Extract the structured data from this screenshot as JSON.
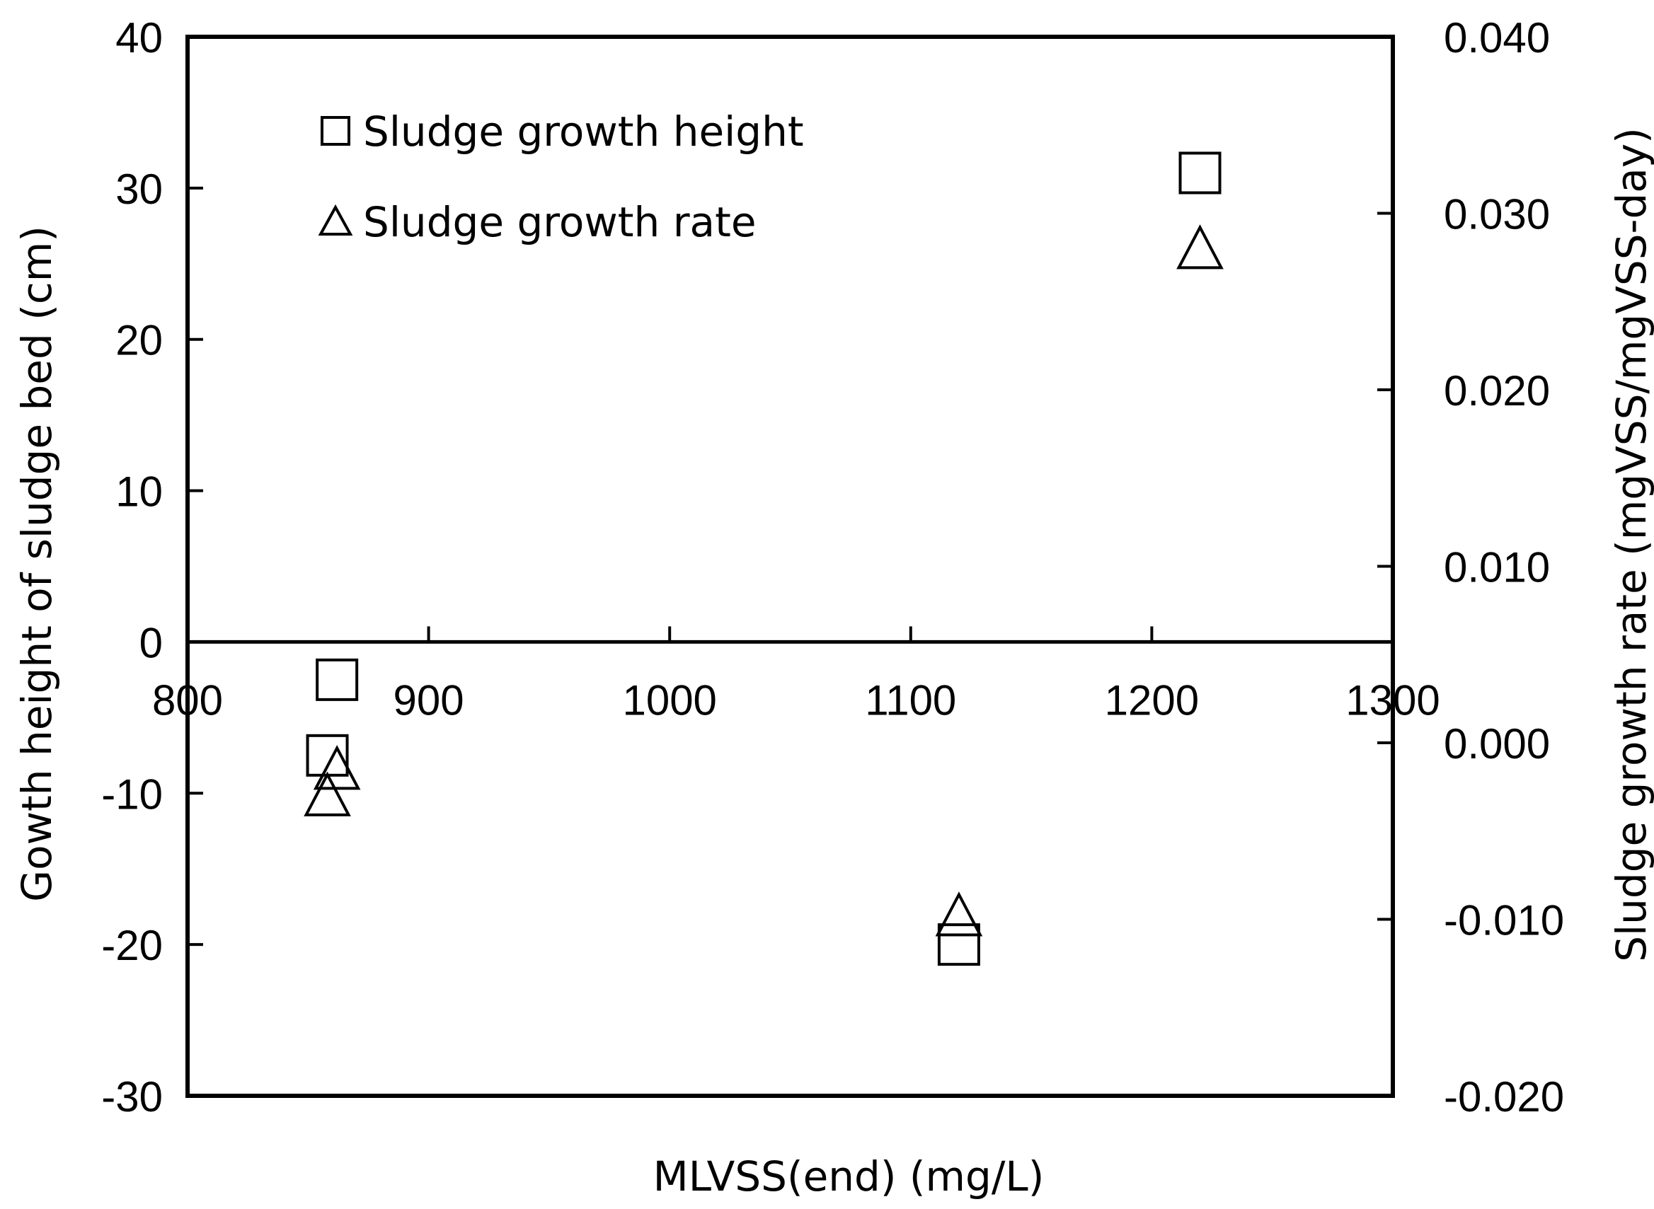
{
  "chart_data": {
    "type": "scatter",
    "title": "",
    "xlabel": "MLVSS(end) (mg/L)",
    "ylabel": "Gowth height of sludge bed (cm)",
    "y2label": "Sludge growth rate (mgVSS/mgVSS-day)",
    "xlim": [
      800,
      1300
    ],
    "ylim": [
      -30,
      40
    ],
    "y2lim": [
      -0.02,
      0.04
    ],
    "x_ticks": [
      "800",
      "900",
      "1000",
      "1100",
      "1200",
      "1300"
    ],
    "y_ticks": [
      "-30",
      "-20",
      "-10",
      "0",
      "10",
      "20",
      "30",
      "40"
    ],
    "y2_ticks": [
      "-0.020",
      "-0.010",
      "0.000",
      "0.010",
      "0.020",
      "0.030",
      "0.040"
    ],
    "grid": false,
    "legend_position": "top-left",
    "series": [
      {
        "name": "Sludge growth height",
        "marker": "square",
        "axis": "left",
        "points": [
          {
            "x": 862,
            "y": -2.5
          },
          {
            "x": 858,
            "y": -7.5
          },
          {
            "x": 1120,
            "y": -20
          },
          {
            "x": 1220,
            "y": 31
          }
        ]
      },
      {
        "name": "Sludge growth rate",
        "marker": "triangle",
        "axis": "right",
        "points": [
          {
            "x": 862,
            "y": -0.0015
          },
          {
            "x": 858,
            "y": -0.003
          },
          {
            "x": 1120,
            "y": -0.0098
          },
          {
            "x": 1220,
            "y": 0.028
          }
        ]
      }
    ]
  }
}
